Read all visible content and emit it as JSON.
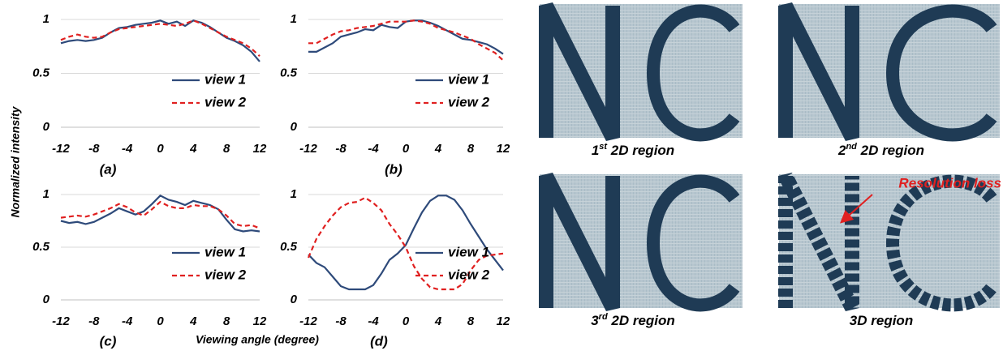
{
  "figure": {
    "y_label": "Normalized intensity",
    "x_label": "Viewing angle (degree)"
  },
  "chart_data": [
    {
      "type": "line",
      "caption": "(a)",
      "x": [
        -12,
        -11,
        -10,
        -9,
        -8,
        -7,
        -6,
        -5,
        -4,
        -3,
        -2,
        -1,
        0,
        1,
        2,
        3,
        4,
        5,
        6,
        7,
        8,
        9,
        10,
        11,
        12
      ],
      "series": [
        {
          "name": "view 1",
          "color": "#2e4a7a",
          "dash": false,
          "values": [
            0.78,
            0.8,
            0.81,
            0.8,
            0.81,
            0.83,
            0.88,
            0.92,
            0.93,
            0.95,
            0.96,
            0.97,
            0.99,
            0.96,
            0.98,
            0.94,
            0.99,
            0.97,
            0.93,
            0.88,
            0.83,
            0.8,
            0.76,
            0.7,
            0.61
          ]
        },
        {
          "name": "view 2",
          "color": "#e02020",
          "dash": true,
          "values": [
            0.81,
            0.84,
            0.86,
            0.84,
            0.83,
            0.84,
            0.88,
            0.91,
            0.92,
            0.93,
            0.94,
            0.95,
            0.96,
            0.95,
            0.94,
            0.96,
            0.99,
            0.96,
            0.92,
            0.88,
            0.84,
            0.81,
            0.78,
            0.73,
            0.66
          ]
        }
      ],
      "xlim": [
        -12,
        12
      ],
      "ylim": [
        0,
        1
      ],
      "xticks": [
        -12,
        -8,
        -4,
        0,
        4,
        8,
        12
      ],
      "yticks": [
        0,
        0.5,
        1
      ],
      "grid": true,
      "legend": "lower right"
    },
    {
      "type": "line",
      "caption": "(b)",
      "x": [
        -12,
        -11,
        -10,
        -9,
        -8,
        -7,
        -6,
        -5,
        -4,
        -3,
        -2,
        -1,
        0,
        1,
        2,
        3,
        4,
        5,
        6,
        7,
        8,
        9,
        10,
        11,
        12
      ],
      "series": [
        {
          "name": "view 1",
          "color": "#2e4a7a",
          "dash": false,
          "values": [
            0.7,
            0.7,
            0.74,
            0.78,
            0.84,
            0.86,
            0.88,
            0.91,
            0.9,
            0.95,
            0.93,
            0.92,
            0.98,
            0.99,
            0.99,
            0.97,
            0.94,
            0.9,
            0.86,
            0.82,
            0.81,
            0.79,
            0.77,
            0.73,
            0.68
          ]
        },
        {
          "name": "view 2",
          "color": "#e02020",
          "dash": true,
          "values": [
            0.78,
            0.78,
            0.82,
            0.86,
            0.89,
            0.9,
            0.92,
            0.93,
            0.94,
            0.96,
            0.98,
            0.98,
            0.98,
            0.99,
            0.98,
            0.96,
            0.92,
            0.9,
            0.88,
            0.85,
            0.82,
            0.77,
            0.73,
            0.69,
            0.62
          ]
        }
      ],
      "xlim": [
        -12,
        12
      ],
      "ylim": [
        0,
        1
      ],
      "xticks": [
        -12,
        -8,
        -4,
        0,
        4,
        8,
        12
      ],
      "yticks": [
        0,
        0.5,
        1
      ],
      "grid": true,
      "legend": "lower right"
    },
    {
      "type": "line",
      "caption": "(c)",
      "x": [
        -12,
        -11,
        -10,
        -9,
        -8,
        -7,
        -6,
        -5,
        -4,
        -3,
        -2,
        -1,
        0,
        1,
        2,
        3,
        4,
        5,
        6,
        7,
        8,
        9,
        10,
        11,
        12
      ],
      "series": [
        {
          "name": "view 1",
          "color": "#2e4a7a",
          "dash": false,
          "values": [
            0.75,
            0.73,
            0.74,
            0.72,
            0.74,
            0.78,
            0.82,
            0.87,
            0.84,
            0.81,
            0.84,
            0.91,
            0.99,
            0.95,
            0.93,
            0.9,
            0.94,
            0.92,
            0.9,
            0.86,
            0.76,
            0.67,
            0.65,
            0.66,
            0.65
          ]
        },
        {
          "name": "view 2",
          "color": "#e02020",
          "dash": true,
          "values": [
            0.78,
            0.79,
            0.8,
            0.79,
            0.81,
            0.84,
            0.87,
            0.91,
            0.88,
            0.83,
            0.8,
            0.86,
            0.93,
            0.89,
            0.87,
            0.87,
            0.9,
            0.89,
            0.89,
            0.86,
            0.8,
            0.72,
            0.7,
            0.71,
            0.68
          ]
        }
      ],
      "xlim": [
        -12,
        12
      ],
      "ylim": [
        0,
        1
      ],
      "xticks": [
        -12,
        -8,
        -4,
        0,
        4,
        8,
        12
      ],
      "yticks": [
        0,
        0.5,
        1
      ],
      "grid": true,
      "legend": "lower right"
    },
    {
      "type": "line",
      "caption": "(d)",
      "x": [
        -12,
        -11,
        -10,
        -9,
        -8,
        -7,
        -6,
        -5,
        -4,
        -3,
        -2,
        -1,
        0,
        1,
        2,
        3,
        4,
        5,
        6,
        7,
        8,
        9,
        10,
        11,
        12
      ],
      "series": [
        {
          "name": "view 1",
          "color": "#2e4a7a",
          "dash": false,
          "values": [
            0.43,
            0.35,
            0.31,
            0.22,
            0.13,
            0.1,
            0.1,
            0.1,
            0.14,
            0.25,
            0.38,
            0.44,
            0.52,
            0.68,
            0.83,
            0.94,
            0.99,
            0.99,
            0.95,
            0.85,
            0.72,
            0.6,
            0.48,
            0.38,
            0.28
          ]
        },
        {
          "name": "view 2",
          "color": "#e02020",
          "dash": true,
          "values": [
            0.4,
            0.58,
            0.7,
            0.8,
            0.88,
            0.92,
            0.93,
            0.97,
            0.92,
            0.85,
            0.72,
            0.62,
            0.5,
            0.32,
            0.2,
            0.12,
            0.1,
            0.1,
            0.1,
            0.15,
            0.28,
            0.38,
            0.42,
            0.43,
            0.44
          ]
        }
      ],
      "xlim": [
        -12,
        12
      ],
      "ylim": [
        0,
        1
      ],
      "xticks": [
        -12,
        -8,
        -4,
        0,
        4,
        8,
        12
      ],
      "yticks": [
        0,
        0.5,
        1
      ],
      "grid": true,
      "legend": "lower right"
    }
  ],
  "photos": [
    {
      "caption": [
        "1",
        "st",
        " 2D region"
      ]
    },
    {
      "caption": [
        "2",
        "nd",
        " 2D region"
      ]
    },
    {
      "caption": [
        "3",
        "rd",
        " 2D region"
      ]
    },
    {
      "caption": [
        "3D region"
      ],
      "annotation": "Resolution loss"
    }
  ]
}
